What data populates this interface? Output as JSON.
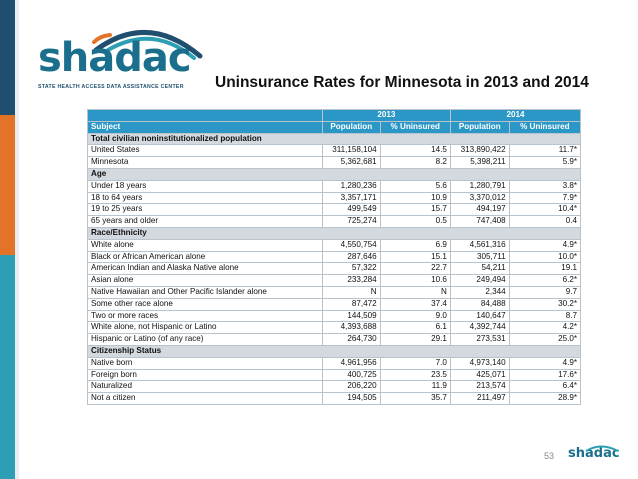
{
  "logo": {
    "wordmark": "shadac",
    "tagline": "STATE HEALTH ACCESS DATA ASSISTANCE CENTER"
  },
  "title": "Uninsurance Rates for Minnesota in 2013 and 2014",
  "table": {
    "year_headers": [
      "2013",
      "2014"
    ],
    "subject_header": "Subject",
    "column_headers": [
      "Population",
      "% Uninsured",
      "Population",
      "% Uninsured"
    ],
    "sections": [
      {
        "title": "Total civilian noninstitutionalized population",
        "rows": [
          [
            "United States",
            "311,158,104",
            "14.5",
            "313,890,422",
            "11.7*"
          ],
          [
            "Minnesota",
            "5,362,681",
            "8.2",
            "5,398,211",
            "5.9*"
          ]
        ]
      },
      {
        "title": "Age",
        "rows": [
          [
            "Under 18 years",
            "1,280,236",
            "5.6",
            "1,280,791",
            "3.8*"
          ],
          [
            "18 to 64 years",
            "3,357,171",
            "10.9",
            "3,370,012",
            "7.9*"
          ],
          [
            "19 to 25 years",
            "499,549",
            "15.7",
            "494,197",
            "10.4*"
          ],
          [
            "65 years and older",
            "725,274",
            "0.5",
            "747,408",
            "0.4"
          ]
        ]
      },
      {
        "title": "Race/Ethnicity",
        "rows": [
          [
            "White alone",
            "4,550,754",
            "6.9",
            "4,561,316",
            "4.9*"
          ],
          [
            "Black or African American alone",
            "287,646",
            "15.1",
            "305,711",
            "10.0*"
          ],
          [
            "American Indian and Alaska Native alone",
            "57,322",
            "22.7",
            "54,211",
            "19.1"
          ],
          [
            "Asian alone",
            "233,284",
            "10.6",
            "249,494",
            "6.2*"
          ],
          [
            "Native Hawaiian and Other Pacific Islander alone",
            "N",
            "N",
            "2,344",
            "9.7"
          ],
          [
            "Some other race alone",
            "87,472",
            "37.4",
            "84,488",
            "30.2*"
          ],
          [
            "Two or more races",
            "144,509",
            "9.0",
            "140,647",
            "8.7"
          ],
          [
            "White alone, not Hispanic or Latino",
            "4,393,688",
            "6.1",
            "4,392,744",
            "4.2*"
          ],
          [
            "Hispanic or Latino (of any race)",
            "264,730",
            "29.1",
            "273,531",
            "25.0*"
          ]
        ]
      },
      {
        "title": "Citizenship Status",
        "rows": [
          [
            "Native born",
            "4,961,956",
            "7.0",
            "4,973,140",
            "4.9*"
          ],
          [
            "Foreign born",
            "400,725",
            "23.5",
            "425,071",
            "17.6*"
          ],
          [
            "Naturalized",
            "206,220",
            "11.9",
            "213,574",
            "6.4*"
          ],
          [
            "Not a citizen",
            "194,505",
            "35.7",
            "211,497",
            "28.9*"
          ]
        ]
      }
    ]
  },
  "footer": {
    "page_number": "53",
    "mini_logo": "shadac"
  },
  "colors": {
    "header_blue": "#2b97c6",
    "section_gray": "#d3d9de",
    "brand_teal": "#1b6f8c",
    "accent_orange": "#e4732a",
    "navy": "#1f4e6e"
  }
}
